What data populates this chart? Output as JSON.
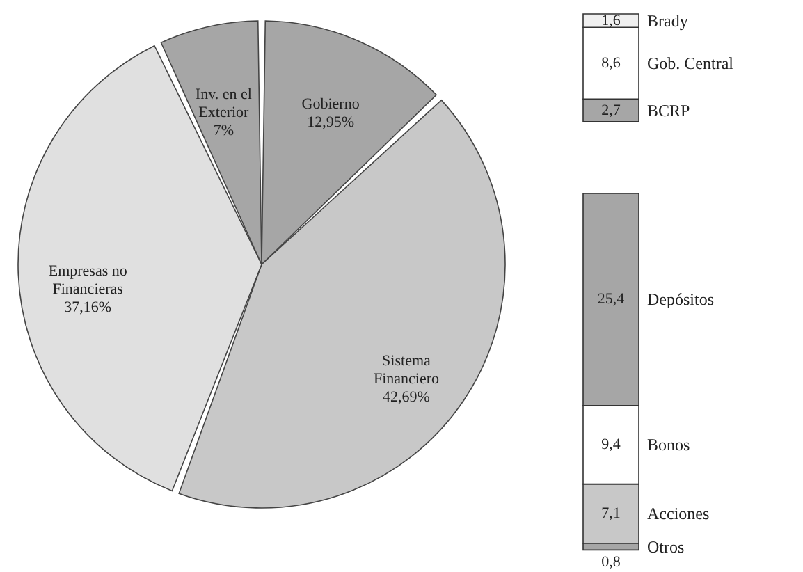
{
  "chart_data": [
    {
      "type": "pie",
      "categories": [
        "Gobierno",
        "Sistema Financiero",
        "Empresas no Financieras",
        "Inv. en el Exterior"
      ],
      "values": [
        12.95,
        42.69,
        37.16,
        7
      ],
      "value_labels": [
        "12,95%",
        "42,69%",
        "37,16%",
        "7%"
      ],
      "colors": [
        "#a6a6a6",
        "#c8c8c8",
        "#e0e0e0",
        "#a6a6a6"
      ]
    },
    {
      "type": "bar",
      "stacked": true,
      "categories": [
        null
      ],
      "series": [
        {
          "name": "BCRP",
          "color": "#a6a6a6",
          "values": [
            2.7
          ],
          "value_labels": [
            "2,7"
          ]
        },
        {
          "name": "Gob. Central",
          "color": "#ffffff",
          "values": [
            8.6
          ],
          "value_labels": [
            "8,6"
          ]
        },
        {
          "name": "Brady",
          "color": "#f0f0f0",
          "values": [
            1.6
          ],
          "value_labels": [
            "1,6"
          ]
        }
      ]
    },
    {
      "type": "bar",
      "stacked": true,
      "categories": [
        null
      ],
      "series": [
        {
          "name": "Otros",
          "color": "#a6a6a6",
          "values": [
            0.8
          ],
          "value_labels": [
            "0,8"
          ]
        },
        {
          "name": "Acciones",
          "color": "#c8c8c8",
          "values": [
            7.1
          ],
          "value_labels": [
            "7,1"
          ]
        },
        {
          "name": "Bonos",
          "color": "#ffffff",
          "values": [
            9.4
          ],
          "value_labels": [
            "9,4"
          ]
        },
        {
          "name": "Depósitos",
          "color": "#a6a6a6",
          "values": [
            25.4
          ],
          "value_labels": [
            "25,4"
          ]
        }
      ]
    }
  ]
}
